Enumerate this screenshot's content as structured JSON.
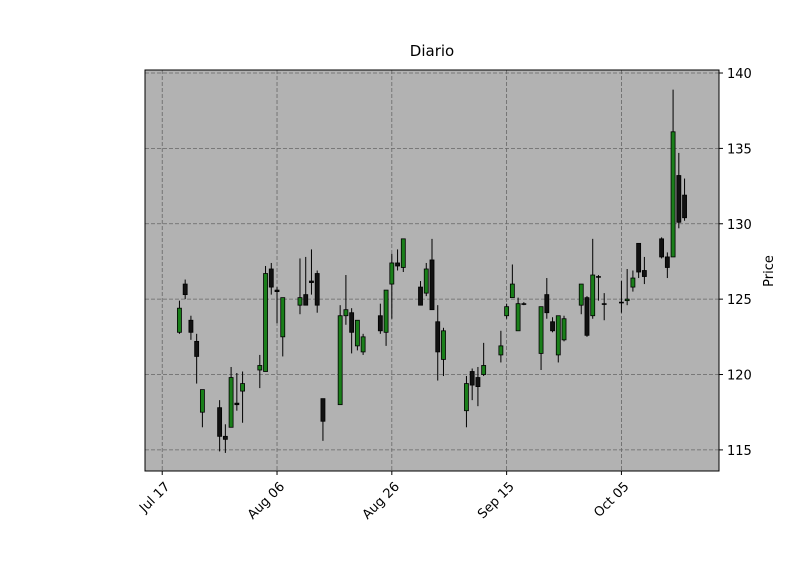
{
  "chart_data": {
    "type": "candlestick",
    "title": "Diario",
    "y_label": "Price",
    "x": [
      "Jul 20",
      "Jul 21",
      "Jul 22",
      "Jul 23",
      "Jul 24",
      "Jul 27",
      "Jul 28",
      "Jul 29",
      "Jul 30",
      "Jul 31",
      "Aug 03",
      "Aug 04",
      "Aug 05",
      "Aug 06",
      "Aug 07",
      "Aug 10",
      "Aug 11",
      "Aug 12",
      "Aug 13",
      "Aug 14",
      "Aug 17",
      "Aug 18",
      "Aug 19",
      "Aug 20",
      "Aug 21",
      "Aug 24",
      "Aug 25",
      "Aug 26",
      "Aug 27",
      "Aug 28",
      "Aug 31",
      "Sep 01",
      "Sep 02",
      "Sep 03",
      "Sep 04",
      "Sep 08",
      "Sep 09",
      "Sep 10",
      "Sep 11",
      "Sep 14",
      "Sep 15",
      "Sep 16",
      "Sep 17",
      "Sep 18",
      "Sep 21",
      "Sep 22",
      "Sep 23",
      "Sep 24",
      "Sep 25",
      "Sep 28",
      "Sep 29",
      "Sep 30",
      "Oct 01",
      "Oct 02",
      "Oct 05",
      "Oct 06",
      "Oct 07",
      "Oct 08",
      "Oct 09",
      "Oct 12",
      "Oct 13",
      "Oct 14",
      "Oct 15",
      "Oct 16"
    ],
    "open": [
      122.8,
      126.0,
      123.6,
      122.2,
      117.5,
      117.8,
      115.9,
      116.5,
      118.1,
      118.9,
      120.3,
      120.2,
      127.0,
      125.6,
      122.5,
      124.6,
      125.3,
      126.2,
      126.7,
      118.4,
      118.0,
      123.9,
      124.1,
      121.9,
      121.5,
      123.9,
      122.8,
      126.0,
      127.4,
      127.1,
      125.8,
      125.4,
      127.6,
      123.5,
      121.0,
      117.6,
      120.2,
      119.8,
      120.0,
      121.3,
      123.9,
      125.1,
      122.9,
      124.7,
      121.4,
      125.3,
      123.5,
      121.3,
      122.3,
      124.6,
      125.1,
      123.9,
      126.5,
      124.7,
      124.8,
      124.9,
      125.8,
      128.7,
      126.9,
      129.0,
      127.8,
      127.8,
      133.2,
      131.9
    ],
    "high": [
      124.9,
      126.3,
      123.9,
      122.7,
      119.0,
      118.3,
      116.7,
      120.5,
      120.1,
      120.2,
      121.3,
      127.2,
      127.4,
      125.8,
      125.1,
      127.7,
      127.8,
      128.3,
      126.9,
      118.4,
      124.6,
      126.6,
      124.4,
      123.6,
      122.7,
      124.7,
      125.6,
      128.0,
      128.3,
      129.0,
      126.2,
      127.4,
      129.0,
      124.6,
      123.1,
      119.9,
      120.4,
      120.5,
      122.1,
      122.9,
      124.7,
      127.3,
      125.1,
      124.8,
      124.5,
      126.4,
      123.8,
      123.9,
      123.9,
      126.0,
      125.2,
      129.0,
      126.6,
      125.4,
      126.2,
      127.0,
      126.9,
      128.7,
      127.8,
      129.1,
      128.1,
      138.9,
      134.7,
      133.0
    ],
    "low": [
      122.7,
      125.0,
      122.3,
      119.4,
      116.5,
      114.9,
      114.8,
      116.5,
      117.6,
      116.8,
      119.1,
      120.2,
      125.3,
      123.4,
      121.2,
      124.0,
      124.6,
      125.3,
      124.1,
      115.6,
      118.0,
      123.3,
      121.4,
      121.6,
      121.3,
      122.7,
      121.9,
      123.7,
      126.9,
      126.8,
      124.6,
      125.2,
      124.3,
      119.6,
      119.9,
      116.5,
      118.3,
      117.9,
      119.9,
      120.8,
      123.7,
      125.1,
      122.9,
      124.6,
      120.3,
      123.7,
      122.8,
      120.8,
      122.2,
      124.0,
      122.5,
      123.7,
      124.9,
      123.6,
      124.1,
      124.6,
      125.5,
      126.4,
      126.0,
      127.7,
      126.4,
      127.8,
      129.7,
      130.2
    ],
    "close": [
      124.4,
      125.3,
      122.8,
      121.2,
      119.0,
      115.9,
      115.7,
      119.8,
      118.0,
      119.4,
      120.6,
      126.7,
      125.8,
      125.5,
      125.1,
      125.1,
      124.6,
      126.1,
      124.6,
      116.9,
      123.9,
      124.3,
      122.8,
      123.6,
      122.5,
      122.9,
      125.6,
      127.4,
      127.2,
      129.0,
      124.6,
      127.0,
      124.3,
      121.5,
      122.9,
      119.4,
      119.3,
      119.2,
      120.6,
      121.9,
      124.5,
      126.0,
      124.7,
      124.7,
      124.5,
      124.1,
      122.9,
      123.9,
      123.7,
      126.0,
      122.6,
      126.6,
      126.5,
      124.7,
      124.8,
      125.0,
      126.4,
      126.8,
      126.5,
      127.8,
      127.1,
      136.1,
      130.1,
      130.4
    ],
    "up_color": "#1a7f1a",
    "down_color": "#111111",
    "background": "#b2b2b2",
    "grid": true,
    "xlim": [
      "Jul 14",
      "Oct 22"
    ],
    "xticks": [
      "Jul 17",
      "Aug 06",
      "Aug 26",
      "Sep 15",
      "Oct 05"
    ],
    "ylim": [
      113.6,
      140.2
    ],
    "yticks": [
      115,
      120,
      125,
      130,
      135,
      140
    ]
  }
}
